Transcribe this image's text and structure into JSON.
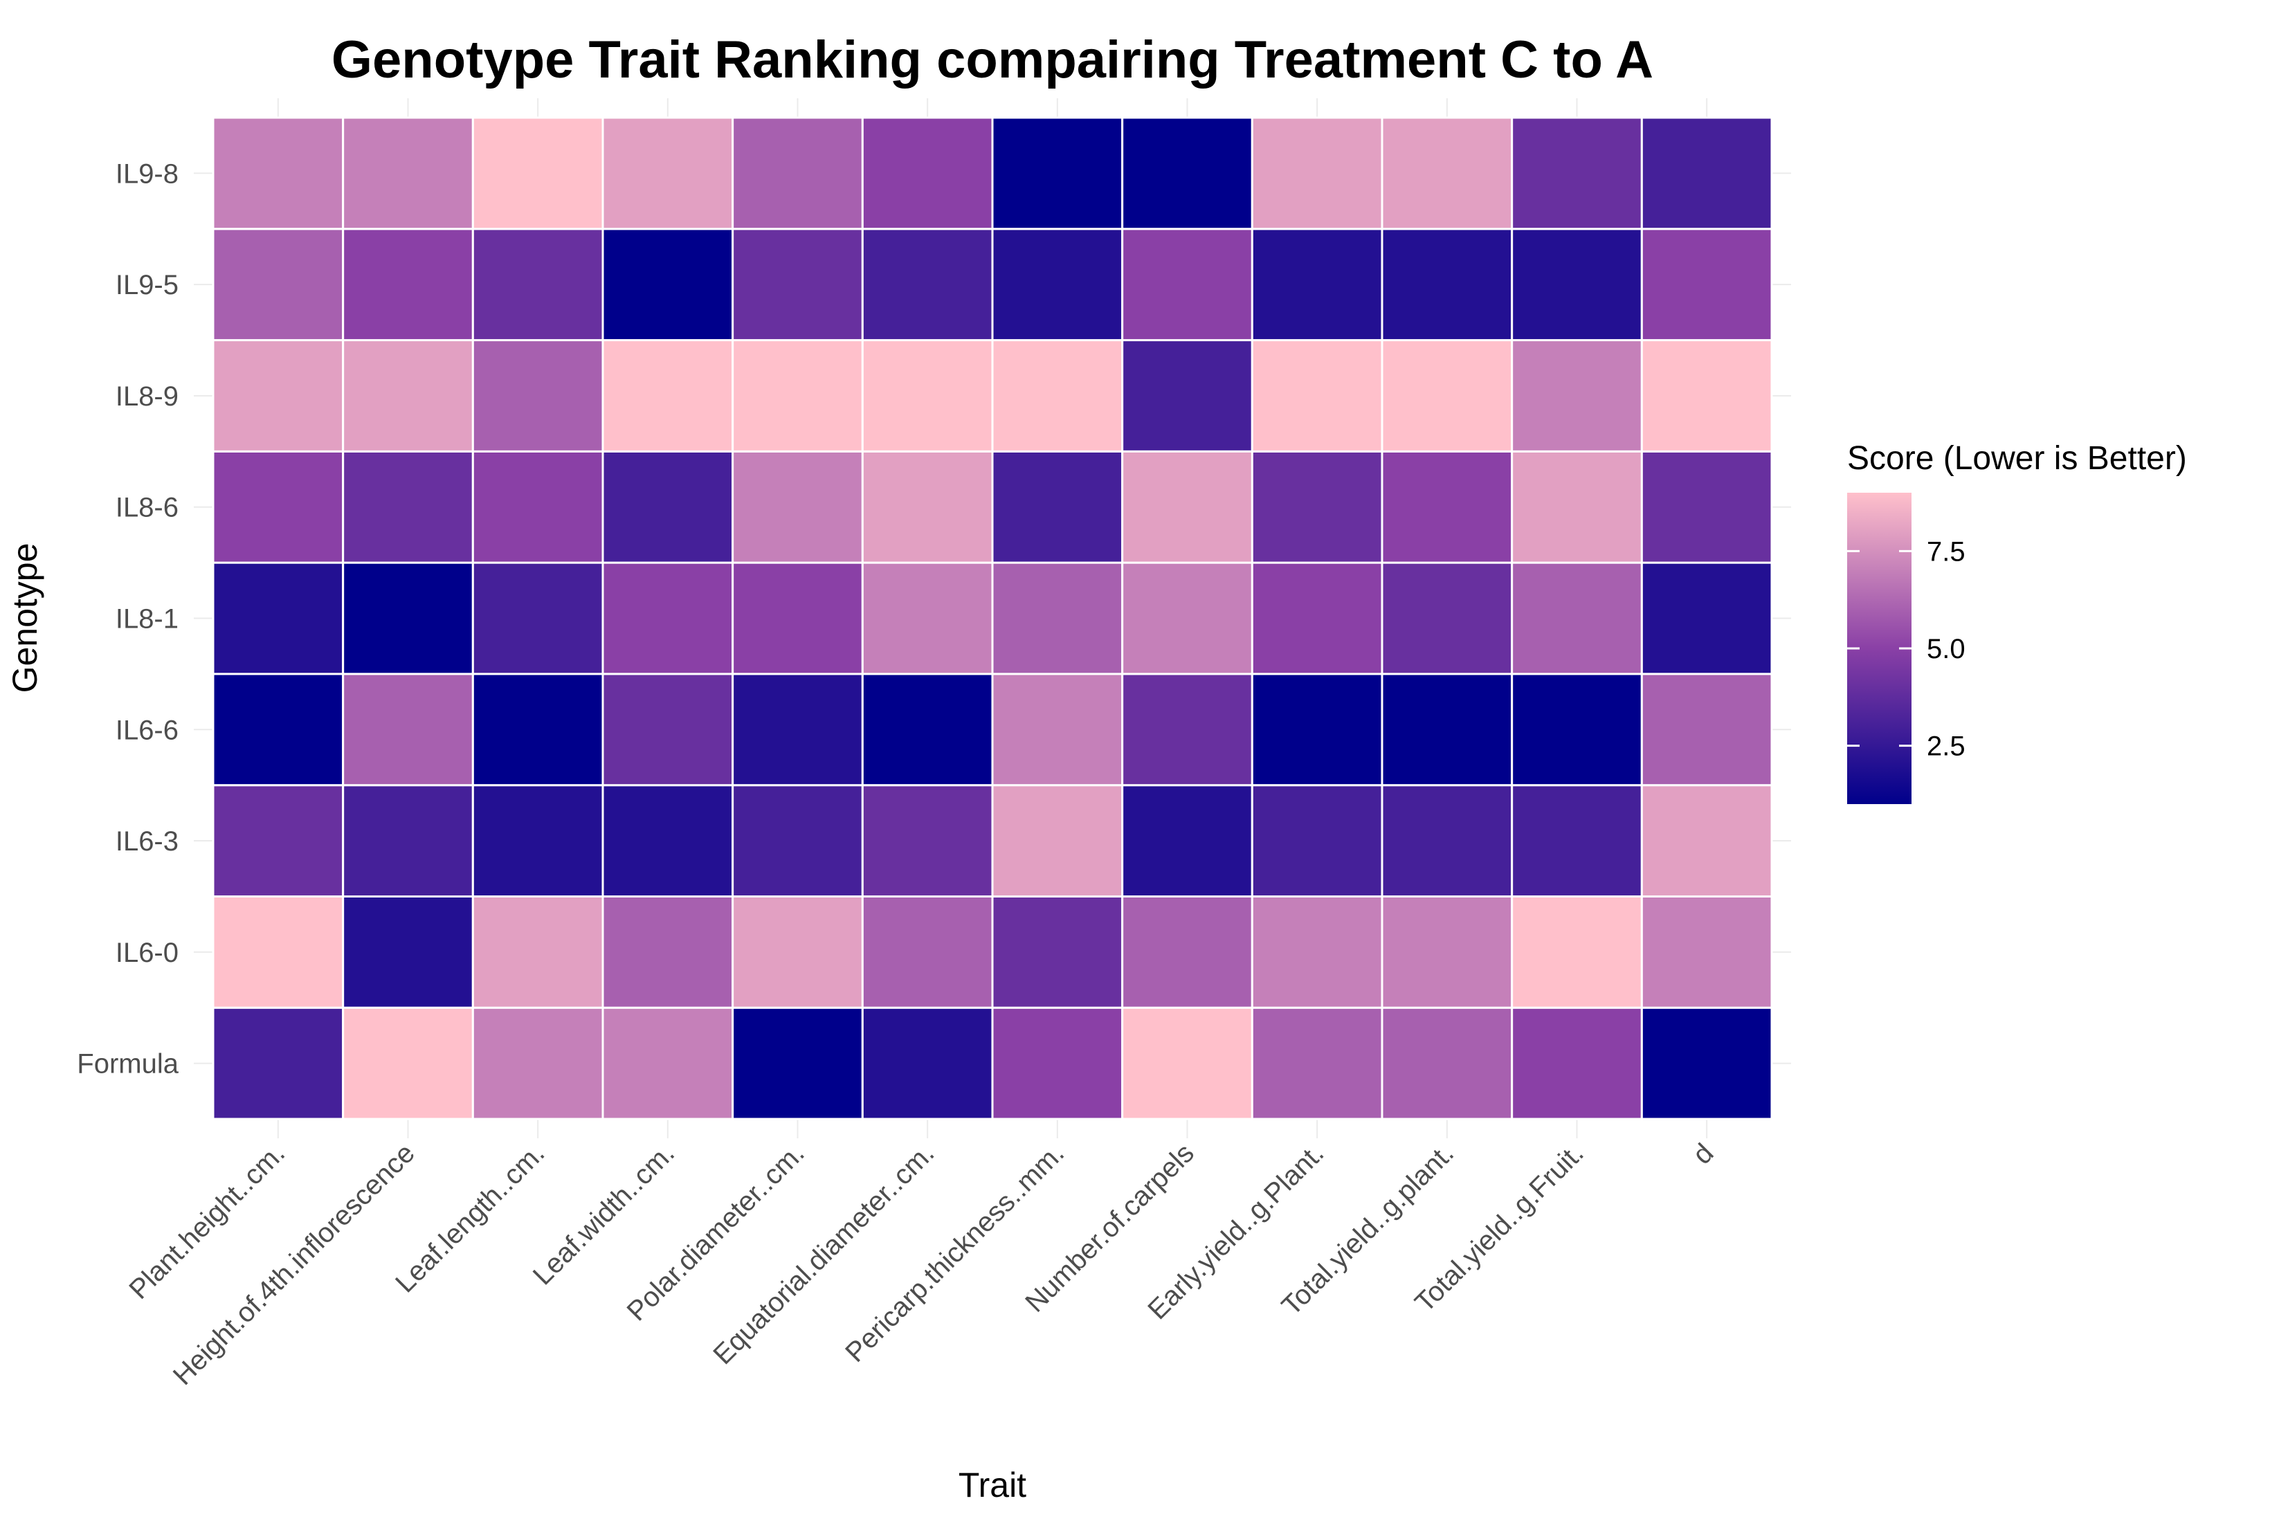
{
  "chart_data": {
    "type": "heatmap",
    "title": "Genotype Trait Ranking compairing Treatment C to A",
    "xlabel": "Trait",
    "ylabel": "Genotype",
    "x_categories": [
      "Plant.height..cm.",
      "Height.of.4th.inflorescence",
      "Leaf.length..cm.",
      "Leaf.width..cm.",
      "Polar.diameter..cm.",
      "Equatorial.diameter..cm.",
      "Pericarp.thickness..mm.",
      "Number.of.carpels",
      "Early.yield..g.Plant.",
      "Total.yield..g.plant.",
      "Total.yield..g.Fruit.",
      "d"
    ],
    "y_categories": [
      "Formula",
      "IL6-0",
      "IL6-3",
      "IL6-6",
      "IL8-1",
      "IL8-6",
      "IL8-9",
      "IL9-5",
      "IL9-8"
    ],
    "values": [
      [
        3,
        9,
        7,
        7,
        1,
        2,
        5,
        9,
        6,
        6,
        5,
        1
      ],
      [
        9,
        2,
        8,
        6,
        8,
        6,
        4,
        6,
        7,
        7,
        9,
        7
      ],
      [
        4,
        3,
        2,
        2,
        3,
        4,
        8,
        2,
        3,
        3,
        3,
        8
      ],
      [
        1,
        6,
        1,
        4,
        2,
        1,
        7,
        4,
        1,
        1,
        1,
        6
      ],
      [
        2,
        1,
        3,
        5,
        5,
        7,
        6,
        7,
        5,
        4,
        6,
        2
      ],
      [
        5,
        4,
        5,
        3,
        7,
        8,
        3,
        8,
        4,
        5,
        8,
        4
      ],
      [
        8,
        8,
        6,
        9,
        9,
        9,
        9,
        3,
        9,
        9,
        7,
        9
      ],
      [
        6,
        5,
        4,
        1,
        4,
        3,
        2,
        5,
        2,
        2,
        2,
        5
      ],
      [
        7,
        7,
        9,
        8,
        6,
        5,
        1,
        1,
        8,
        8,
        4,
        3
      ]
    ],
    "legend": {
      "title": "Score (Lower is Better)",
      "placement": "right",
      "min": 1,
      "max": 9,
      "ticks": [
        2.5,
        5.0,
        7.5
      ],
      "tick_labels": [
        "2.5",
        "5.0",
        "7.5"
      ],
      "low_color": "#00008b",
      "high_color": "#ffc0cb"
    },
    "grid": true
  }
}
